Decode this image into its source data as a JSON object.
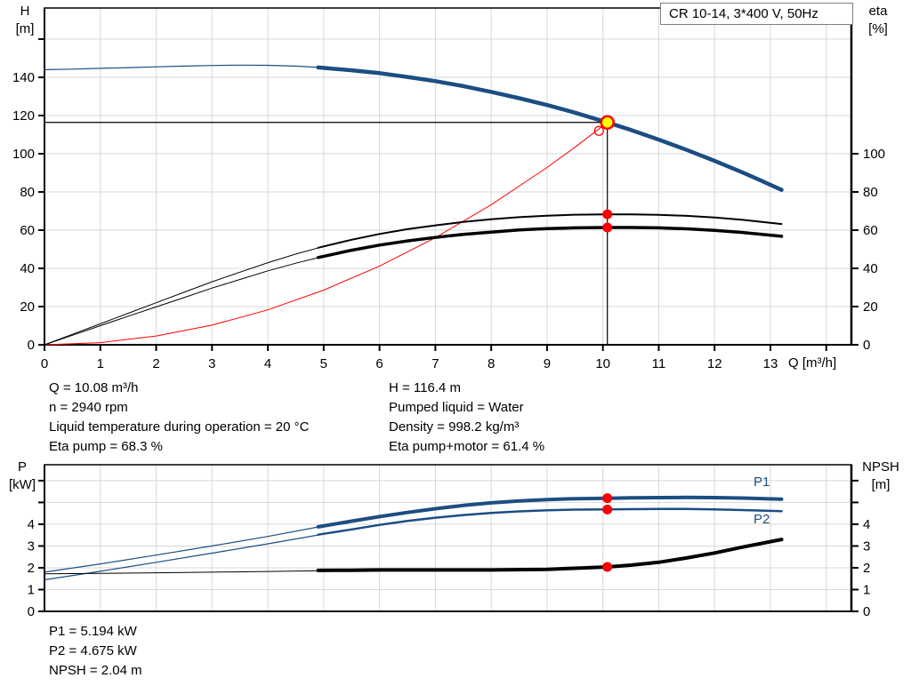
{
  "title_box": "CR 10-14, 3*400 V, 50Hz",
  "colors": {
    "curve_blue": "#1b4e82",
    "curve_black": "#000000",
    "system_red": "#ff0000",
    "marker_red": "#ff0000",
    "marker_yellow": "#ffff00",
    "grid": "#d8d8d8",
    "axis": "#000000"
  },
  "top_chart_labels": {
    "y": "H",
    "y_unit": "[m]",
    "y2": "eta",
    "y2_unit": "[%]",
    "x": "Q [m³/h]"
  },
  "bottom_chart_labels": {
    "y": "P",
    "y_unit": "[kW]",
    "y2": "NPSH",
    "y2_unit": "[m]"
  },
  "info_top_left": {
    "0": "Q = 10.08 m³/h",
    "1": "n = 2940 rpm",
    "2": "Liquid temperature during operation = 20 °C",
    "3": "Eta pump = 68.3 %"
  },
  "info_top_right": {
    "0": "H = 116.4 m",
    "1": "Pumped liquid = Water",
    "2": "Density = 998.2 kg/m³",
    "3": "Eta pump+motor = 61.4 %"
  },
  "info_bottom": {
    "0": "P1 = 5.194 kW",
    "1": "P2 = 4.675 kW",
    "2": "NPSH = 2.04 m"
  },
  "chart_data": [
    {
      "type": "line",
      "title": "CR 10-14, 3*400 V, 50Hz",
      "xlabel": "Q [m³/h]",
      "ylabel": "H [m]",
      "y2label": "eta [%]",
      "xlim": [
        0,
        14.45
      ],
      "ylim": [
        0,
        176.3
      ],
      "grid": true,
      "x_ticks": [
        0,
        1,
        2,
        3,
        4,
        5,
        6,
        7,
        8,
        9,
        10,
        11,
        12,
        13
      ],
      "x_ticks_unlabeled": [
        14
      ],
      "grid_x": [
        1,
        2,
        3,
        4,
        5,
        6,
        7,
        8,
        9,
        10,
        11,
        12,
        13,
        14
      ],
      "y_ticks": [
        0,
        20,
        40,
        60,
        80,
        100,
        120,
        140
      ],
      "y_ticks_unlabeled": [
        160
      ],
      "grid_y": [
        20,
        40,
        60,
        80,
        100,
        120,
        140,
        160
      ],
      "y2_ticks": [
        0,
        20,
        40,
        60,
        80,
        100
      ],
      "y2_ticks_unlabeled": [],
      "operating_point": {
        "Q": 10.08,
        "H": 116.4,
        "eta_pump": 68.3,
        "eta_pump_motor": 61.4
      },
      "series": [
        {
          "name": "pump-curve-thin",
          "color": "#1b4e82",
          "width": 1.2,
          "points": [
            [
              0,
              144
            ],
            [
              0.5,
              144.3
            ],
            [
              1,
              144.7
            ],
            [
              1.5,
              145.1
            ],
            [
              2,
              145.5
            ],
            [
              2.5,
              145.9
            ],
            [
              3,
              146.2
            ],
            [
              3.5,
              146.4
            ],
            [
              4,
              146.3
            ],
            [
              4.5,
              145.9
            ],
            [
              5,
              145.1
            ]
          ]
        },
        {
          "name": "pump-curve",
          "color": "#1b4e82",
          "width": 4.5,
          "points": [
            [
              4.9,
              145.2
            ],
            [
              5.5,
              143.7
            ],
            [
              6,
              142.2
            ],
            [
              6.5,
              140.2
            ],
            [
              7,
              138
            ],
            [
              7.5,
              135.4
            ],
            [
              8,
              132.4
            ],
            [
              8.5,
              129.1
            ],
            [
              9,
              125.5
            ],
            [
              9.5,
              121.5
            ],
            [
              10.08,
              116.4
            ],
            [
              10.5,
              112.5
            ],
            [
              11,
              107.4
            ],
            [
              11.5,
              102
            ],
            [
              12,
              96.3
            ],
            [
              12.5,
              90.2
            ],
            [
              12.8,
              86.4
            ],
            [
              13.2,
              81.1
            ]
          ]
        },
        {
          "name": "system-curve",
          "color": "#ff0000",
          "width": 1,
          "points": [
            [
              0,
              0
            ],
            [
              1,
              1.1
            ],
            [
              2,
              4.6
            ],
            [
              3,
              10.3
            ],
            [
              4,
              18.3
            ],
            [
              5,
              28.6
            ],
            [
              6,
              41.2
            ],
            [
              7,
              56.1
            ],
            [
              8,
              73.3
            ],
            [
              9,
              92.8
            ],
            [
              9.5,
              103.4
            ],
            [
              10.08,
              116.4
            ]
          ]
        },
        {
          "name": "eta-pump-curve-thin",
          "color": "#000000",
          "width": 1,
          "points": [
            [
              0,
              0
            ],
            [
              0.5,
              5.5
            ],
            [
              1,
              11
            ],
            [
              1.5,
              16.5
            ],
            [
              2,
              22
            ],
            [
              2.5,
              27.5
            ],
            [
              3,
              33
            ],
            [
              3.5,
              38
            ],
            [
              4,
              43
            ],
            [
              4.5,
              47.5
            ],
            [
              5,
              51.5
            ]
          ]
        },
        {
          "name": "eta-pump-curve",
          "color": "#000000",
          "width": 2,
          "points": [
            [
              4.9,
              50.8
            ],
            [
              5.5,
              55
            ],
            [
              6,
              58
            ],
            [
              6.5,
              60.5
            ],
            [
              7,
              62.5
            ],
            [
              7.5,
              64.3
            ],
            [
              8,
              65.7
            ],
            [
              8.5,
              66.8
            ],
            [
              9,
              67.6
            ],
            [
              9.5,
              68.1
            ],
            [
              10.08,
              68.3
            ],
            [
              10.5,
              68.3
            ],
            [
              11,
              68
            ],
            [
              11.5,
              67.5
            ],
            [
              12,
              66.6
            ],
            [
              12.5,
              65.4
            ],
            [
              13.2,
              63.2
            ]
          ]
        },
        {
          "name": "eta-pump-motor-curve-thin",
          "color": "#000000",
          "width": 1,
          "points": [
            [
              0,
              0
            ],
            [
              0.5,
              5
            ],
            [
              1,
              10
            ],
            [
              1.5,
              15
            ],
            [
              2,
              19.8
            ],
            [
              2.5,
              24.7
            ],
            [
              3,
              29.7
            ],
            [
              3.5,
              34.2
            ],
            [
              4,
              38.7
            ],
            [
              4.5,
              42.7
            ],
            [
              5,
              46.3
            ]
          ]
        },
        {
          "name": "eta-pump-motor-curve",
          "color": "#000000",
          "width": 3.5,
          "points": [
            [
              4.9,
              45.7
            ],
            [
              5.5,
              49.5
            ],
            [
              6,
              52.2
            ],
            [
              6.5,
              54.4
            ],
            [
              7,
              56.2
            ],
            [
              7.5,
              57.8
            ],
            [
              8,
              59
            ],
            [
              8.5,
              60.1
            ],
            [
              9,
              60.8
            ],
            [
              9.5,
              61.2
            ],
            [
              10.08,
              61.4
            ],
            [
              10.5,
              61.4
            ],
            [
              11,
              61.2
            ],
            [
              11.5,
              60.7
            ],
            [
              12,
              59.9
            ],
            [
              12.5,
              58.8
            ],
            [
              13.2,
              56.8
            ]
          ]
        }
      ],
      "ref_lines": [
        {
          "type": "h",
          "y": 116.4,
          "x0": 0,
          "x1": 10.08,
          "color": "#000000",
          "width": 1.2
        },
        {
          "type": "v",
          "x": 10.08,
          "y0": 0,
          "y1": 116.4,
          "color": "#000000",
          "width": 1.2
        }
      ],
      "markers": [
        {
          "name": "duty-point-requested",
          "x": 9.93,
          "y": 112,
          "r": 5,
          "fill": "none",
          "stroke": "#ff0000",
          "sw": 1.3
        },
        {
          "name": "duty-point",
          "x": 10.08,
          "y": 116.4,
          "r": 7,
          "fill": "#ffff00",
          "stroke": "#ff0000",
          "sw": 2.5
        },
        {
          "name": "eta-pump-point",
          "x": 10.08,
          "y": 68.3,
          "r": 5.5,
          "fill": "#ff0000",
          "stroke": "none",
          "sw": 0
        },
        {
          "name": "eta-pump-motor-point",
          "x": 10.08,
          "y": 61.4,
          "r": 5.5,
          "fill": "#ff0000",
          "stroke": "none",
          "sw": 0
        }
      ]
    },
    {
      "type": "line",
      "title": "",
      "xlabel": "",
      "ylabel": "P [kW]",
      "y2label": "NPSH [m]",
      "xlim": [
        0,
        14.45
      ],
      "ylim": [
        0,
        6.73
      ],
      "grid": true,
      "grid_x": [
        1,
        2,
        3,
        4,
        5,
        6,
        7,
        8,
        9,
        10,
        11,
        12,
        13,
        14
      ],
      "y_ticks": [
        0,
        1,
        2,
        3,
        4
      ],
      "y_ticks_unlabeled": [
        5,
        6
      ],
      "grid_y": [
        1,
        2,
        3,
        4,
        5,
        6
      ],
      "y2_ticks": [
        0,
        1,
        2,
        3,
        4
      ],
      "y2_ticks_unlabeled": [
        5,
        6
      ],
      "operating_point": {
        "Q": 10.08,
        "P1": 5.194,
        "P2": 4.675,
        "NPSH": 2.04
      },
      "series_labels": {
        "p1": "P1",
        "p2": "P2"
      },
      "series": [
        {
          "name": "p1-curve-thin",
          "color": "#1b4e82",
          "width": 1.2,
          "points": [
            [
              0,
              1.8
            ],
            [
              1,
              2.18
            ],
            [
              2,
              2.58
            ],
            [
              3,
              3.0
            ],
            [
              4,
              3.44
            ],
            [
              5,
              3.92
            ]
          ]
        },
        {
          "name": "p1-curve",
          "color": "#1b4e82",
          "width": 4,
          "points": [
            [
              4.9,
              3.88
            ],
            [
              5.5,
              4.14
            ],
            [
              6,
              4.35
            ],
            [
              6.5,
              4.54
            ],
            [
              7,
              4.71
            ],
            [
              7.5,
              4.86
            ],
            [
              8,
              4.98
            ],
            [
              8.5,
              5.07
            ],
            [
              9,
              5.13
            ],
            [
              9.5,
              5.17
            ],
            [
              10.08,
              5.19
            ],
            [
              10.5,
              5.21
            ],
            [
              11,
              5.22
            ],
            [
              11.5,
              5.23
            ],
            [
              12,
              5.22
            ],
            [
              12.5,
              5.2
            ],
            [
              13.2,
              5.15
            ]
          ]
        },
        {
          "name": "p2-curve-thin",
          "color": "#1b4e82",
          "width": 1.2,
          "points": [
            [
              0,
              1.45
            ],
            [
              1,
              1.84
            ],
            [
              2,
              2.25
            ],
            [
              3,
              2.67
            ],
            [
              4,
              3.1
            ],
            [
              5,
              3.55
            ]
          ]
        },
        {
          "name": "p2-curve",
          "color": "#1b4e82",
          "width": 2.5,
          "points": [
            [
              4.9,
              3.52
            ],
            [
              5.5,
              3.76
            ],
            [
              6,
              3.97
            ],
            [
              6.5,
              4.15
            ],
            [
              7,
              4.3
            ],
            [
              7.5,
              4.42
            ],
            [
              8,
              4.52
            ],
            [
              8.5,
              4.59
            ],
            [
              9,
              4.64
            ],
            [
              9.5,
              4.67
            ],
            [
              10.08,
              4.68
            ],
            [
              10.5,
              4.69
            ],
            [
              11,
              4.7
            ],
            [
              11.5,
              4.7
            ],
            [
              12,
              4.68
            ],
            [
              12.5,
              4.65
            ],
            [
              13.2,
              4.6
            ]
          ]
        },
        {
          "name": "npsh-curve-thin",
          "color": "#000000",
          "width": 1,
          "points": [
            [
              0,
              1.72
            ],
            [
              1,
              1.74
            ],
            [
              2,
              1.77
            ],
            [
              3,
              1.8
            ],
            [
              4,
              1.83
            ],
            [
              5,
              1.87
            ]
          ]
        },
        {
          "name": "npsh-curve",
          "color": "#000000",
          "width": 4,
          "points": [
            [
              4.9,
              1.88
            ],
            [
              5.5,
              1.89
            ],
            [
              6,
              1.9
            ],
            [
              7,
              1.9
            ],
            [
              8,
              1.9
            ],
            [
              9,
              1.93
            ],
            [
              9.5,
              1.98
            ],
            [
              10.08,
              2.04
            ],
            [
              10.5,
              2.12
            ],
            [
              11,
              2.25
            ],
            [
              11.5,
              2.45
            ],
            [
              12,
              2.68
            ],
            [
              12.5,
              2.95
            ],
            [
              13.2,
              3.3
            ]
          ]
        }
      ],
      "ref_lines": [],
      "markers": [
        {
          "name": "p1-point",
          "x": 10.08,
          "y": 5.194,
          "r": 5.5,
          "fill": "#ff0000",
          "stroke": "none",
          "sw": 0
        },
        {
          "name": "p2-point",
          "x": 10.08,
          "y": 4.675,
          "r": 5.5,
          "fill": "#ff0000",
          "stroke": "none",
          "sw": 0
        },
        {
          "name": "npsh-point",
          "x": 10.08,
          "y": 2.04,
          "r": 5.5,
          "fill": "#ff0000",
          "stroke": "none",
          "sw": 0
        }
      ]
    }
  ]
}
